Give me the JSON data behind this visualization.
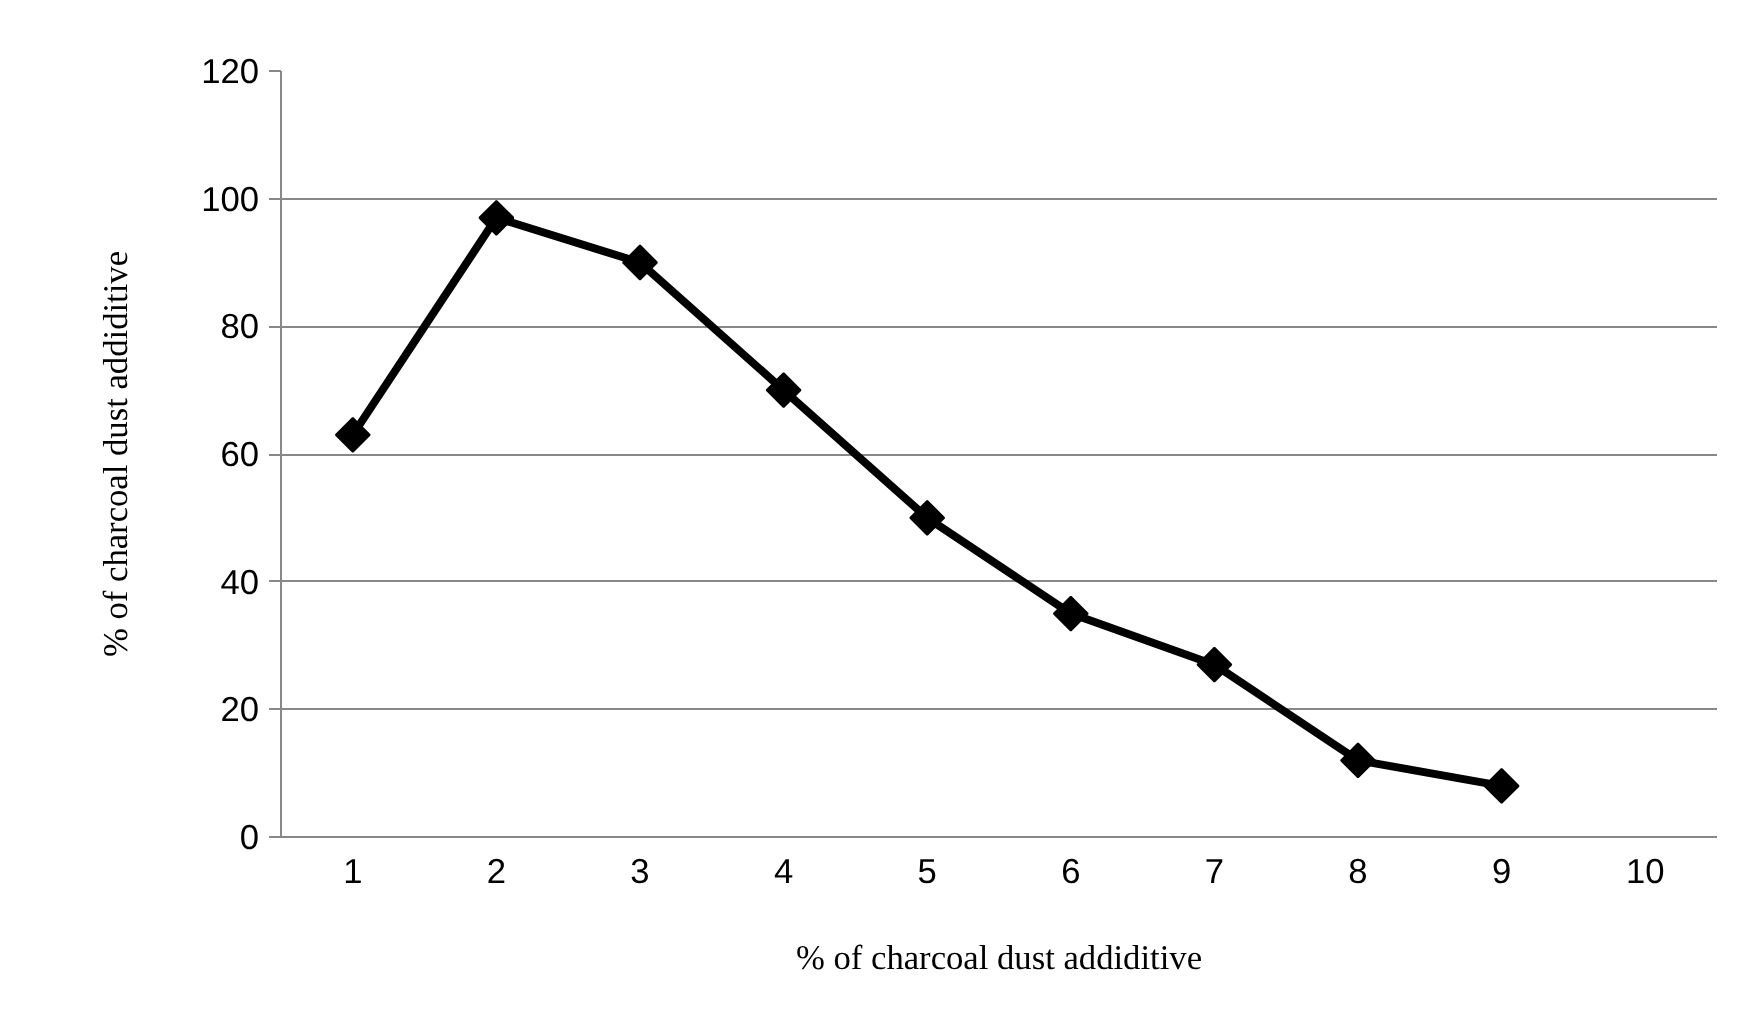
{
  "chart_data": {
    "type": "line",
    "xlabel": "% of charcoal dust addiditive",
    "ylabel": "% of charcoal dust addiditive",
    "categories": [
      "1",
      "2",
      "3",
      "4",
      "5",
      "6",
      "7",
      "8",
      "9",
      "10"
    ],
    "series": [
      {
        "color": "#000000",
        "values": [
          63,
          97,
          90,
          70,
          50,
          35,
          27,
          12,
          8,
          null
        ]
      }
    ],
    "ylim": [
      0,
      120
    ],
    "yticks": [
      0,
      20,
      40,
      60,
      80,
      100,
      120
    ],
    "grid": "y",
    "marker": "diamond",
    "line_style": "solid"
  }
}
